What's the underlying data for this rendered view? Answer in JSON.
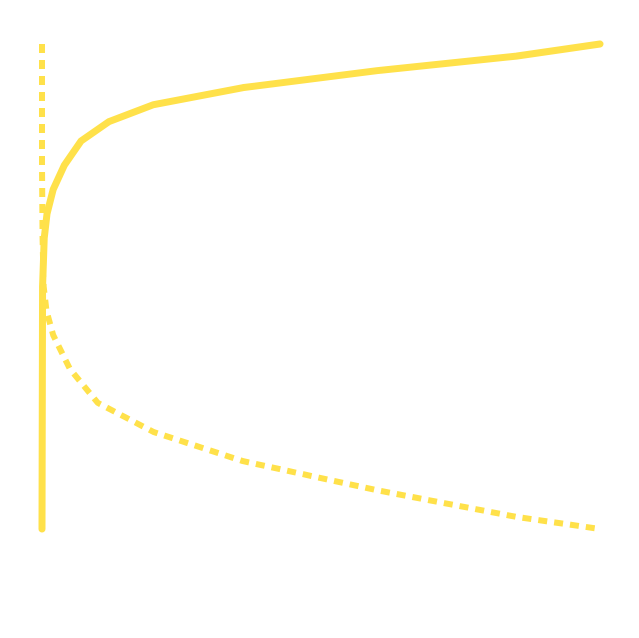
{
  "chart_data": {
    "type": "line",
    "title": "",
    "xlabel": "",
    "ylabel": "",
    "xlim": [
      0,
      1
    ],
    "ylim": [
      -1,
      1
    ],
    "grid": false,
    "legend": "none",
    "series": [
      {
        "style": "solid",
        "color": "#FFE14A",
        "x": [
          0,
          0.001,
          0.004,
          0.009,
          0.02,
          0.04,
          0.07,
          0.12,
          0.2,
          0.36,
          0.6,
          0.85,
          1.0
        ],
        "y": [
          -1,
          0.0,
          0.2,
          0.3,
          0.4,
          0.5,
          0.6,
          0.68,
          0.75,
          0.82,
          0.89,
          0.95,
          1.0
        ]
      },
      {
        "style": "dashed",
        "color": "#FFE14A",
        "x": [
          0,
          0.0,
          0.0,
          0.001,
          0.003,
          0.008,
          0.02,
          0.05,
          0.1,
          0.2,
          0.36,
          0.6,
          0.85,
          1.0
        ],
        "y": [
          1,
          0.8,
          0.5,
          0.2,
          0.0,
          -0.1,
          -0.2,
          -0.34,
          -0.48,
          -0.6,
          -0.72,
          -0.84,
          -0.95,
          -1.0
        ]
      }
    ]
  }
}
